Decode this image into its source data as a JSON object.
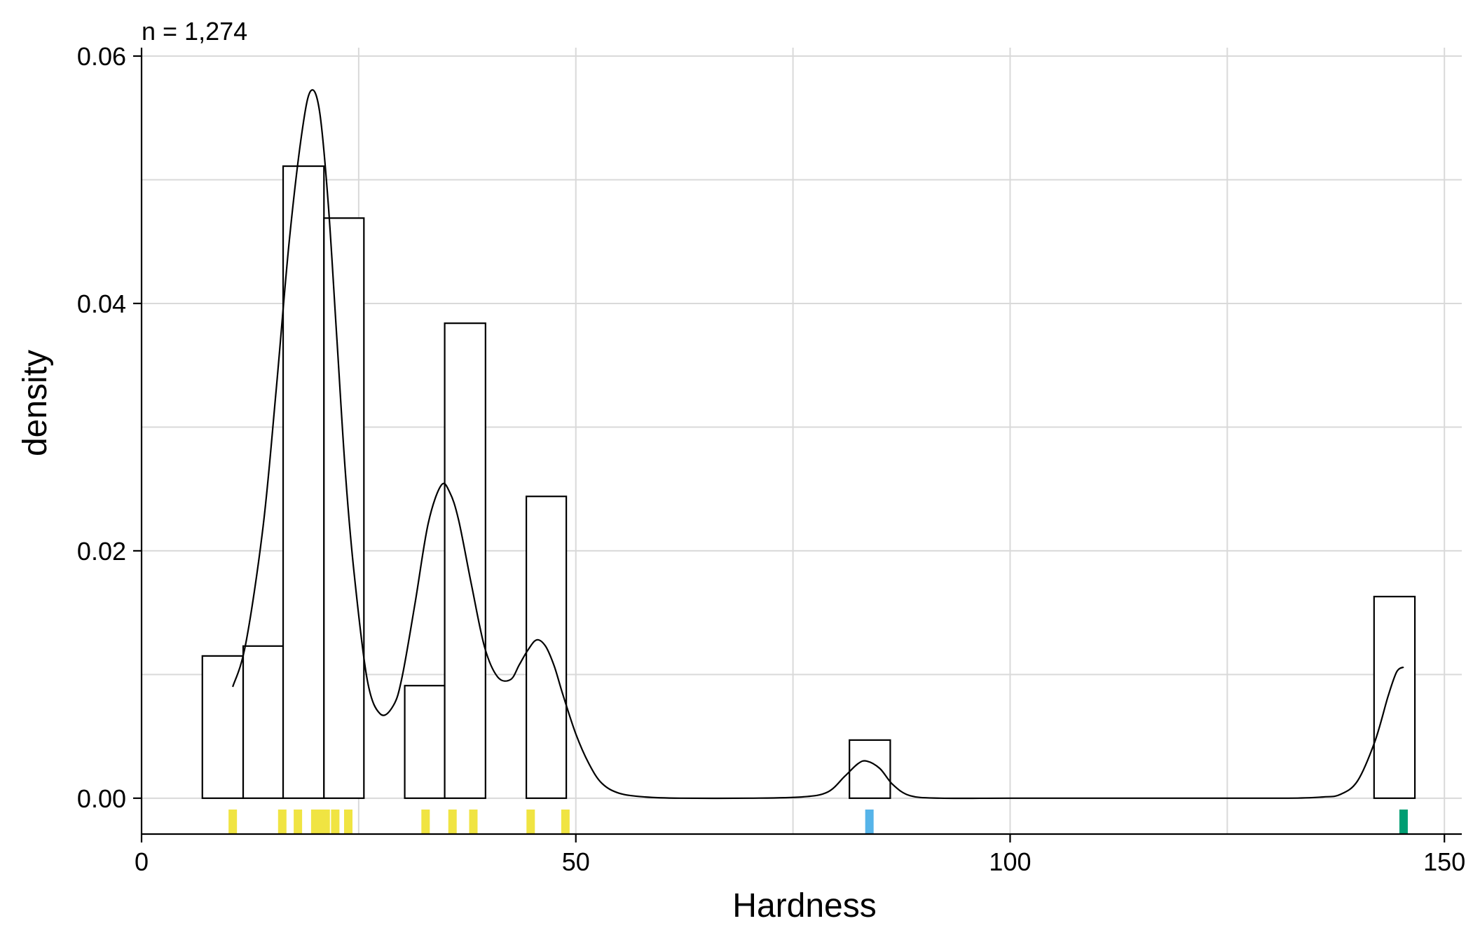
{
  "chart_data": {
    "type": "histogram",
    "subtitle": "n = 1,274",
    "xlabel": "Hardness",
    "ylabel": "density",
    "xlim": [
      0,
      152
    ],
    "ylim": [
      -0.0029,
      0.06
    ],
    "x_ticks": [
      0,
      50,
      100,
      150
    ],
    "y_ticks": [
      0.0,
      0.02,
      0.04,
      0.06
    ],
    "x_tick_labels": [
      "0",
      "50",
      "100",
      "150"
    ],
    "y_tick_labels": [
      "0.00",
      "0.02",
      "0.04",
      "0.06"
    ],
    "grid": true,
    "bins": [
      {
        "x0": 7.0,
        "x1": 11.7,
        "density": 0.0115
      },
      {
        "x0": 11.7,
        "x1": 16.3,
        "density": 0.0123
      },
      {
        "x0": 16.3,
        "x1": 21.0,
        "density": 0.0511
      },
      {
        "x0": 21.0,
        "x1": 25.6,
        "density": 0.0469
      },
      {
        "x0": 30.3,
        "x1": 34.9,
        "density": 0.0091
      },
      {
        "x0": 34.9,
        "x1": 39.6,
        "density": 0.0384
      },
      {
        "x0": 44.3,
        "x1": 48.9,
        "density": 0.0244
      },
      {
        "x0": 81.5,
        "x1": 86.2,
        "density": 0.0047
      },
      {
        "x0": 141.9,
        "x1": 146.6,
        "density": 0.0163
      }
    ],
    "density_curve": {
      "x": [
        10.5,
        12,
        14,
        15.5,
        17,
        18.5,
        19.5,
        20.5,
        21.5,
        22.5,
        23.5,
        24.5,
        26,
        27.5,
        29,
        30,
        31.5,
        33,
        34.5,
        35.5,
        36.5,
        38,
        39.5,
        41,
        42.5,
        43.5,
        44.5,
        45.5,
        46.5,
        47.5,
        48.5,
        50,
        51.5,
        53,
        55,
        58,
        62,
        70,
        76,
        79,
        81,
        82.5,
        83.5,
        85,
        86.5,
        88.5,
        92,
        100,
        120,
        132,
        136,
        138,
        140,
        142,
        143.5,
        144.5,
        145.3
      ],
      "y": [
        0.009,
        0.0125,
        0.022,
        0.033,
        0.045,
        0.054,
        0.0572,
        0.0555,
        0.048,
        0.037,
        0.026,
        0.018,
        0.0095,
        0.0068,
        0.0075,
        0.0098,
        0.0158,
        0.0222,
        0.0253,
        0.0247,
        0.0225,
        0.0172,
        0.0122,
        0.0098,
        0.0096,
        0.0108,
        0.012,
        0.0128,
        0.0123,
        0.0107,
        0.0084,
        0.0052,
        0.0028,
        0.0012,
        0.0004,
        0.0001,
        0.0,
        0.0,
        0.0001,
        0.0005,
        0.0018,
        0.0028,
        0.003,
        0.0024,
        0.0011,
        0.0002,
        0.0,
        0.0,
        0.0,
        0.0,
        0.0001,
        0.0003,
        0.0014,
        0.0046,
        0.0082,
        0.0102,
        0.0106
      ]
    },
    "rug": [
      {
        "x": 10.5,
        "color": "#f0e442"
      },
      {
        "x": 16.2,
        "color": "#f0e442"
      },
      {
        "x": 18.0,
        "color": "#f0e442"
      },
      {
        "x": 20.0,
        "color": "#f0e442"
      },
      {
        "x": 20.4,
        "color": "#f0e442"
      },
      {
        "x": 21.2,
        "color": "#f0e442"
      },
      {
        "x": 22.3,
        "color": "#f0e442"
      },
      {
        "x": 23.8,
        "color": "#f0e442"
      },
      {
        "x": 32.7,
        "color": "#f0e442"
      },
      {
        "x": 35.8,
        "color": "#f0e442"
      },
      {
        "x": 38.2,
        "color": "#f0e442"
      },
      {
        "x": 44.8,
        "color": "#f0e442"
      },
      {
        "x": 48.8,
        "color": "#f0e442"
      },
      {
        "x": 83.8,
        "color": "#56b4e9"
      },
      {
        "x": 145.3,
        "color": "#009e73"
      }
    ],
    "colors": {
      "bar_fill": "#ffffff",
      "bar_stroke": "#000000",
      "curve": "#000000",
      "grid": "#d9d9d9"
    }
  }
}
